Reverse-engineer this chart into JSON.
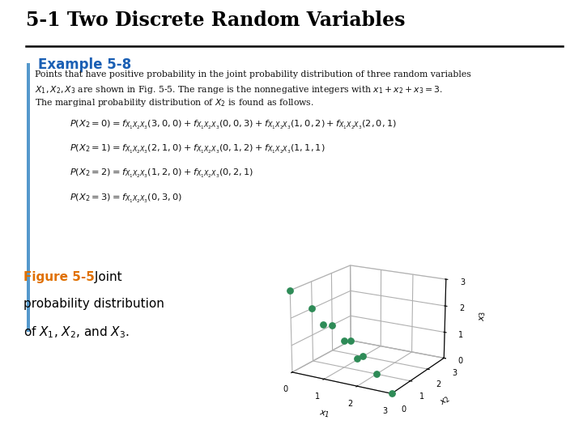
{
  "title": "5-1 Two Discrete Random Variables",
  "example_label": "Example 5-8",
  "body_line1": "Points that have positive probability in the joint probability distribution of three random variables",
  "body_line2": "$X_1, X_2, X_3$ are shown in Fig. 5-5. The range is the nonnegative integers with $x_1 + x_2 + x_3 = 3$.",
  "body_line3": "The marginal probability distribution of $X_2$ is found as follows.",
  "eq1": "$P(X_2 = 0) = f_{X_1X_2X_3}(3, 0, 0) + f_{X_1X_2X_3}(0, 0, 3) + f_{X_1X_2X_3}(1, 0, 2) + f_{X_1X_2X_3}(2, 0, 1)$",
  "eq2": "$P(X_2 = 1) = f_{X_1X_2X_3}(2, 1, 0) + f_{X_1X_2X_3}(0, 1, 2) + f_{X_1X_2X_3}(1, 1, 1)$",
  "eq3": "$P(X_2 = 2) = f_{X_1X_2X_3}(1, 2, 0) + f_{X_1X_2X_3}(0, 2, 1)$",
  "eq4": "$P(X_2 = 3) = f_{X_1X_2X_3}(0, 3, 0)$",
  "fig_label": "Figure 5-5",
  "fig_cap1": " Joint",
  "fig_cap2": "probability distribution",
  "fig_cap3": "of $X_1$, $X_2$, and $X_3$.",
  "points": [
    [
      0,
      0,
      3
    ],
    [
      1,
      0,
      2
    ],
    [
      2,
      0,
      1
    ],
    [
      3,
      0,
      0
    ],
    [
      0,
      1,
      2
    ],
    [
      1,
      1,
      1
    ],
    [
      2,
      1,
      0
    ],
    [
      0,
      2,
      1
    ],
    [
      1,
      2,
      0
    ],
    [
      0,
      3,
      0
    ]
  ],
  "point_color": "#2e8b57",
  "grid_color": "#c8c8c8",
  "title_color": "#000000",
  "example_color": "#1a5fb4",
  "figure_label_color": "#e07000",
  "bg_color": "#ffffff",
  "accent_bar_color": "#5599cc",
  "title_fontsize": 17,
  "example_fontsize": 12,
  "body_fontsize": 7.8,
  "eq_fontsize": 8.2,
  "caption_fontsize": 11
}
